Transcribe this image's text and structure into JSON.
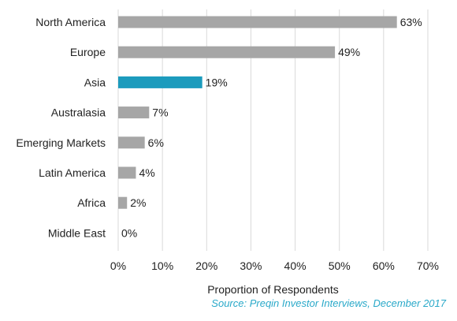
{
  "chart_data": {
    "type": "bar",
    "orientation": "horizontal",
    "categories": [
      "North America",
      "Europe",
      "Asia",
      "Australasia",
      "Emerging Markets",
      "Latin America",
      "Africa",
      "Middle East"
    ],
    "values": [
      63,
      49,
      19,
      7,
      6,
      4,
      2,
      0
    ],
    "value_labels": [
      "63%",
      "49%",
      "19%",
      "7%",
      "6%",
      "4%",
      "2%",
      "0%"
    ],
    "highlight_category": "Asia",
    "xlim": [
      0,
      70
    ],
    "xticks": [
      "0%",
      "10%",
      "20%",
      "30%",
      "40%",
      "50%",
      "60%",
      "70%"
    ],
    "xlabel": "Proportion of Respondents",
    "grid": "vertical",
    "colors": {
      "bar": "#a6a6a6",
      "highlight": "#1c9bbd",
      "grid": "#d9d9d9"
    }
  },
  "source": "Source: Preqin Investor Interviews, December 2017"
}
